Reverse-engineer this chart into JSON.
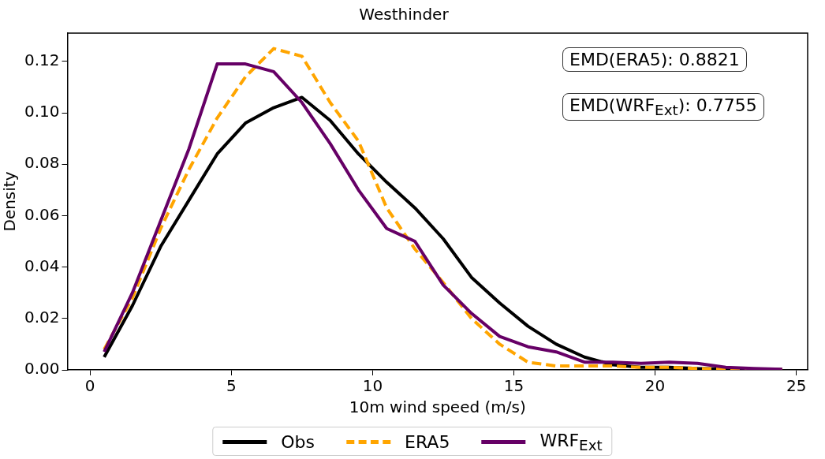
{
  "chart_data": {
    "type": "line",
    "title": "Westhinder",
    "xlabel": "10m wind speed (m/s)",
    "ylabel": "Density",
    "x": [
      0.5,
      1.5,
      2.5,
      3.5,
      4.5,
      5.5,
      6.5,
      7.5,
      8.5,
      9.5,
      10.5,
      11.5,
      12.5,
      13.5,
      14.5,
      15.5,
      16.5,
      17.5,
      18.5,
      19.5,
      20.5,
      21.5,
      22.5,
      23.5,
      24.5
    ],
    "series": [
      {
        "name": "Obs",
        "color": "#000000",
        "line_style": "solid",
        "values": [
          0.005,
          0.025,
          0.048,
          0.066,
          0.084,
          0.096,
          0.102,
          0.106,
          0.097,
          0.084,
          0.073,
          0.063,
          0.051,
          0.036,
          0.026,
          0.017,
          0.01,
          0.005,
          0.002,
          0.001,
          0.001,
          0.0005,
          0.0003,
          0.0002,
          0.0001
        ]
      },
      {
        "name": "ERA5",
        "color": "#ffa500",
        "line_style": "dashed",
        "values": [
          0.008,
          0.028,
          0.055,
          0.078,
          0.098,
          0.114,
          0.125,
          0.122,
          0.104,
          0.089,
          0.063,
          0.047,
          0.034,
          0.02,
          0.01,
          0.003,
          0.0015,
          0.0015,
          0.0015,
          0.001,
          0.001,
          0.0005,
          0.0003,
          0.0002,
          0.0001
        ]
      },
      {
        "name": "WRF$_{Ext}$",
        "color": "#660066",
        "line_style": "solid",
        "values": [
          0.007,
          0.03,
          0.058,
          0.086,
          0.119,
          0.119,
          0.116,
          0.104,
          0.088,
          0.07,
          0.055,
          0.05,
          0.033,
          0.022,
          0.013,
          0.009,
          0.007,
          0.003,
          0.003,
          0.0025,
          0.003,
          0.0025,
          0.001,
          0.0005,
          0.0002
        ]
      }
    ],
    "xlim": [
      -0.8,
      25.4
    ],
    "xticks": [
      0,
      5,
      10,
      15,
      20,
      25
    ],
    "ylim": [
      0,
      0.131
    ],
    "yticks": [
      {
        "value": 0,
        "label": "0.00"
      },
      {
        "value": 0.02,
        "label": "0.02"
      },
      {
        "value": 0.04,
        "label": "0.04"
      },
      {
        "value": 0.06,
        "label": "0.06"
      },
      {
        "value": 0.08,
        "label": "0.08"
      },
      {
        "value": 0.1,
        "label": "0.10"
      },
      {
        "value": 0.12,
        "label": "0.12"
      }
    ],
    "annotations": [
      "EMD(ERA5): 0.8821",
      "EMD(WRF$_{Ext}$): 0.7755"
    ],
    "grid": false,
    "legend": "bottom",
    "marker": "none"
  }
}
